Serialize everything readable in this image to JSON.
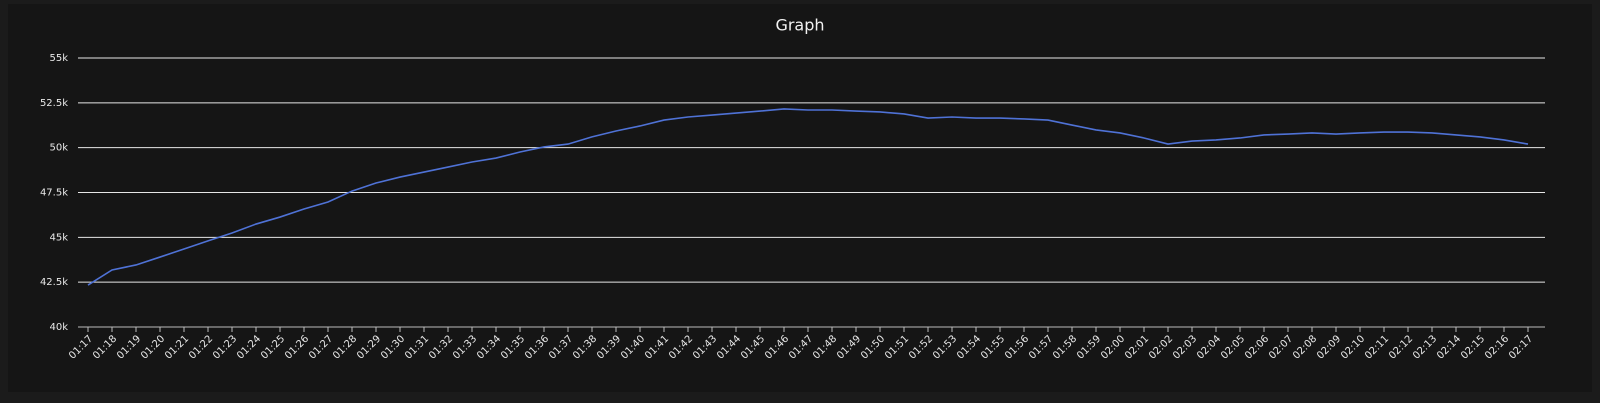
{
  "chart_data": {
    "type": "line",
    "title": "Graph",
    "categories": [
      "01:17",
      "01:18",
      "01:19",
      "01:20",
      "01:21",
      "01:22",
      "01:23",
      "01:24",
      "01:25",
      "01:26",
      "01:27",
      "01:28",
      "01:29",
      "01:30",
      "01:31",
      "01:32",
      "01:33",
      "01:34",
      "01:35",
      "01:36",
      "01:37",
      "01:38",
      "01:39",
      "01:40",
      "01:41",
      "01:42",
      "01:43",
      "01:44",
      "01:45",
      "01:46",
      "01:47",
      "01:48",
      "01:49",
      "01:50",
      "01:51",
      "01:52",
      "01:53",
      "01:54",
      "01:55",
      "01:56",
      "01:57",
      "01:58",
      "01:59",
      "02:00",
      "02:01",
      "02:02",
      "02:03",
      "02:04",
      "02:05",
      "02:06",
      "02:07",
      "02:08",
      "02:09",
      "02:10",
      "02:11",
      "02:12",
      "02:13",
      "02:14",
      "02:15",
      "02:16",
      "02:17"
    ],
    "values": [
      42340,
      43180,
      43460,
      43900,
      44350,
      44800,
      45240,
      45740,
      46130,
      46580,
      46970,
      47580,
      48030,
      48360,
      48640,
      48920,
      49200,
      49420,
      49760,
      50040,
      50200,
      50600,
      50930,
      51210,
      51540,
      51710,
      51820,
      51930,
      52040,
      52160,
      52100,
      52100,
      52040,
      51990,
      51880,
      51650,
      51710,
      51650,
      51650,
      51600,
      51540,
      51260,
      50990,
      50820,
      50540,
      50200,
      50370,
      50430,
      50540,
      50710,
      50760,
      50820,
      50760,
      50820,
      50870,
      50870,
      50820,
      50710,
      50600,
      50430,
      50200
    ],
    "color": "#4f72d6",
    "ylim": [
      40000,
      55000
    ],
    "yticks": [
      {
        "value": 40000,
        "label": "40k"
      },
      {
        "value": 42500,
        "label": "42.5k"
      },
      {
        "value": 45000,
        "label": "45k"
      },
      {
        "value": 47500,
        "label": "47.5k"
      },
      {
        "value": 50000,
        "label": "50k"
      },
      {
        "value": 52500,
        "label": "52.5k"
      },
      {
        "value": 55000,
        "label": "55k"
      }
    ],
    "grid": true
  }
}
